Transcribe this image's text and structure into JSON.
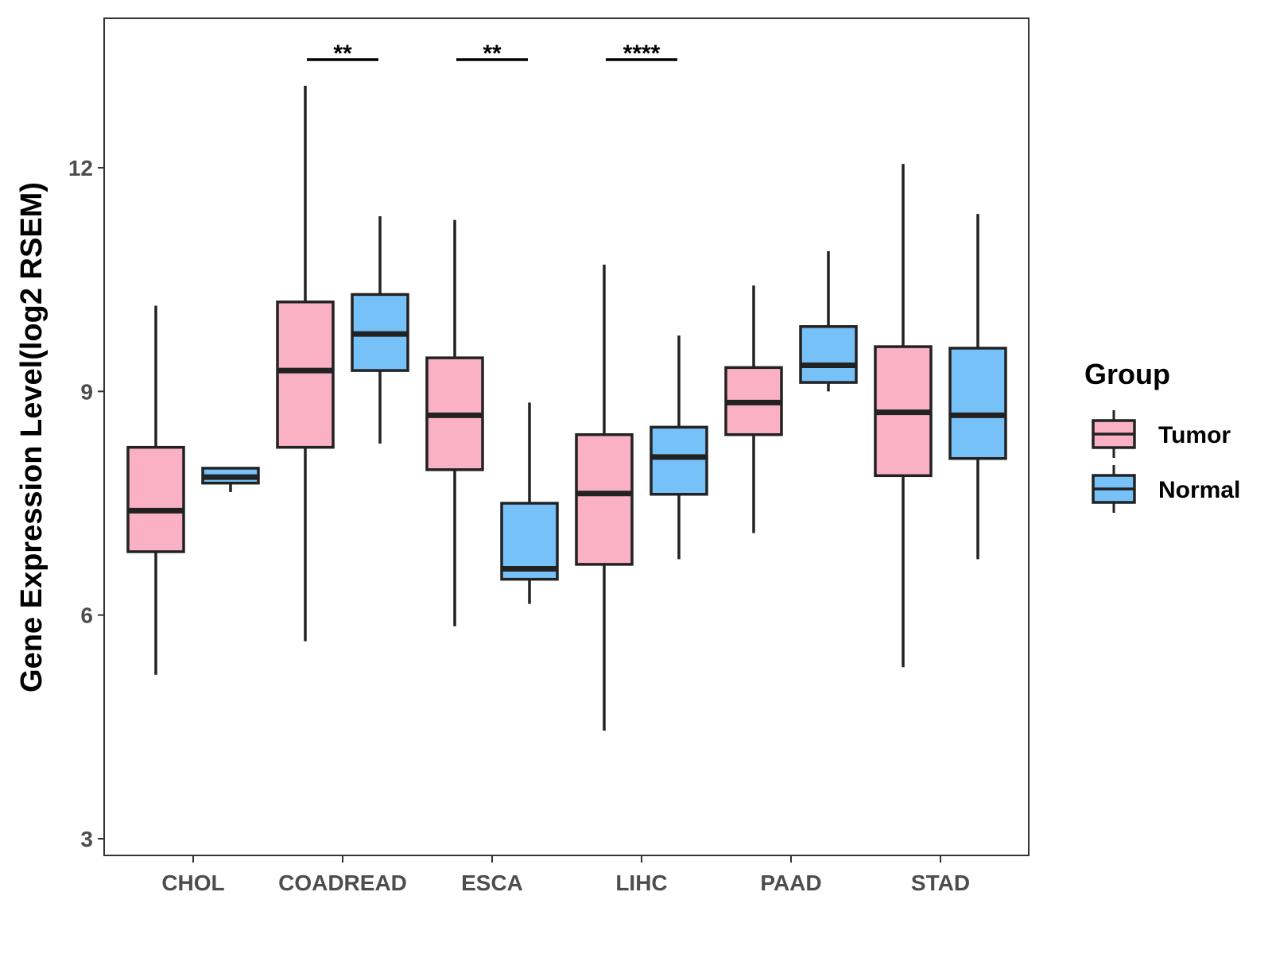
{
  "chart_data": {
    "type": "box",
    "title": "",
    "xlabel": "",
    "ylabel": "Gene Expression Level(log2 RSEM)",
    "ylim": [
      2.8,
      14.0
    ],
    "yticks": [
      3,
      6,
      9,
      12
    ],
    "categories": [
      "CHOL",
      "COADREAD",
      "ESCA",
      "LIHC",
      "PAAD",
      "STAD"
    ],
    "legend": {
      "title": "Group",
      "position": "right",
      "entries": [
        {
          "name": "Tumor",
          "color": "#fbb1c4"
        },
        {
          "name": "Normal",
          "color": "#77c1f9"
        }
      ]
    },
    "series": [
      {
        "name": "Tumor",
        "color": "#fbb1c4",
        "boxes": [
          {
            "category": "CHOL",
            "min": 5.2,
            "q1": 6.85,
            "median": 7.4,
            "q3": 8.25,
            "max": 10.15
          },
          {
            "category": "COADREAD",
            "min": 5.65,
            "q1": 8.25,
            "median": 9.28,
            "q3": 10.2,
            "max": 13.1
          },
          {
            "category": "ESCA",
            "min": 5.85,
            "q1": 7.95,
            "median": 8.68,
            "q3": 9.45,
            "max": 11.3
          },
          {
            "category": "LIHC",
            "min": 4.45,
            "q1": 6.68,
            "median": 7.63,
            "q3": 8.42,
            "max": 10.7
          },
          {
            "category": "PAAD",
            "min": 7.1,
            "q1": 8.42,
            "median": 8.85,
            "q3": 9.32,
            "max": 10.42
          },
          {
            "category": "STAD",
            "min": 5.3,
            "q1": 7.87,
            "median": 8.72,
            "q3": 9.6,
            "max": 12.05
          }
        ]
      },
      {
        "name": "Normal",
        "color": "#77c1f9",
        "boxes": [
          {
            "category": "CHOL",
            "min": 7.65,
            "q1": 7.77,
            "median": 7.85,
            "q3": 7.97,
            "max": 7.97
          },
          {
            "category": "COADREAD",
            "min": 8.3,
            "q1": 9.28,
            "median": 9.77,
            "q3": 10.3,
            "max": 11.35
          },
          {
            "category": "ESCA",
            "min": 6.15,
            "q1": 6.48,
            "median": 6.62,
            "q3": 7.5,
            "max": 8.85
          },
          {
            "category": "LIHC",
            "min": 6.75,
            "q1": 7.62,
            "median": 8.12,
            "q3": 8.52,
            "max": 9.75
          },
          {
            "category": "PAAD",
            "min": 9.0,
            "q1": 9.12,
            "median": 9.35,
            "q3": 9.87,
            "max": 10.88
          },
          {
            "category": "STAD",
            "min": 6.75,
            "q1": 8.1,
            "median": 8.68,
            "q3": 9.58,
            "max": 11.38
          }
        ]
      }
    ],
    "significance": [
      {
        "category": "COADREAD",
        "label": "**"
      },
      {
        "category": "ESCA",
        "label": "**"
      },
      {
        "category": "LIHC",
        "label": "****"
      }
    ],
    "grid": false
  }
}
